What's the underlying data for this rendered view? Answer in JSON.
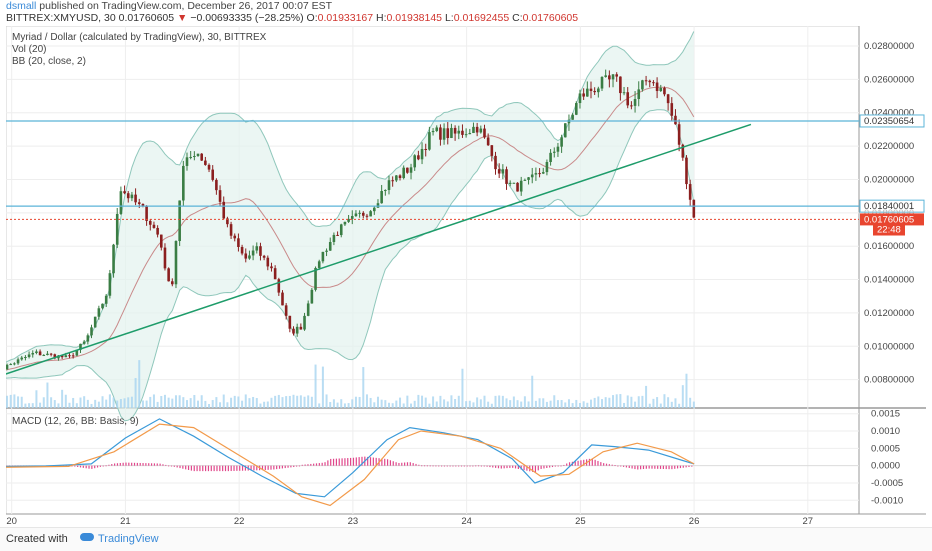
{
  "header": {
    "user": "dsmall",
    "published": " published on TradingView.com, December 26, 2017 00:07 EST",
    "symbol": "BITTREX:XMYUSD, 30",
    "last": "0.01760605",
    "arrow": "▼",
    "change": "−0.00693335 (−28.25%)",
    "o_label": "O:",
    "o": "0.01933167",
    "h_label": "H:",
    "h": "0.01938145",
    "l_label": "L:",
    "l": "0.01692455",
    "c_label": "C:",
    "c": "0.01760605"
  },
  "legend": {
    "title": "Myriad / Dollar (calculated by TradingView), 30, BITTREX",
    "vol": "Vol (20)",
    "bb": "BB (20, close, 2)",
    "macd": "MACD (12, 26, BB: Basis, 9)"
  },
  "footer": {
    "created": "Created with",
    "brand": "TradingView"
  },
  "colors": {
    "up": "#3a7d44",
    "down": "#8b1f1f",
    "band": "#8fc7bb",
    "bandfill": "#e3f2ee",
    "basis": "#c98a8a",
    "hline": "#5bb4d8",
    "trend": "#1e9c6a",
    "price": "#e8452f",
    "macd": "#3a9ad9",
    "signal": "#f29a4a",
    "hist": "#e0468a",
    "volume": "#a8d4f0"
  },
  "chart_data": {
    "type": "candlestick",
    "title": "Myriad / Dollar (calculated by TradingView), 30, BITTREX",
    "x_ticks": [
      "20",
      "21",
      "22",
      "23",
      "24",
      "25",
      "26",
      "27"
    ],
    "price_ticks": [
      "0.00800000",
      "0.01000000",
      "0.01200000",
      "0.01400000",
      "0.01600000",
      "0.01800000",
      "0.02000000",
      "0.02200000",
      "0.02400000",
      "0.02600000",
      "0.02800000"
    ],
    "ylim": [
      0.0063,
      0.0292
    ],
    "price_labels": [
      {
        "label": "0.02350654",
        "value": 0.02350654,
        "style": "hline"
      },
      {
        "label": "0.01840001",
        "value": 0.01840001,
        "style": "hline"
      },
      {
        "label": "0.01800000",
        "value": 0.018,
        "style": "faded"
      },
      {
        "label": "0.01760605",
        "value": 0.01760605,
        "style": "price"
      },
      {
        "label": "22:48",
        "value": 0.017,
        "style": "timer"
      }
    ],
    "trendline": [
      [
        19.8,
        0.008
      ],
      [
        26.5,
        0.0233
      ]
    ],
    "candles_x_range": [
      19.83,
      26.0
    ],
    "price_path": [
      [
        19.83,
        0.0084
      ],
      [
        20.2,
        0.0096
      ],
      [
        20.5,
        0.0093
      ],
      [
        20.65,
        0.0103
      ],
      [
        20.85,
        0.0134
      ],
      [
        20.95,
        0.0195
      ],
      [
        21.15,
        0.0182
      ],
      [
        21.3,
        0.0165
      ],
      [
        21.4,
        0.013
      ],
      [
        21.5,
        0.0206
      ],
      [
        21.62,
        0.0218
      ],
      [
        21.75,
        0.0205
      ],
      [
        21.9,
        0.017
      ],
      [
        22.05,
        0.0152
      ],
      [
        22.15,
        0.0158
      ],
      [
        22.3,
        0.0145
      ],
      [
        22.45,
        0.0108
      ],
      [
        22.55,
        0.0112
      ],
      [
        22.7,
        0.0152
      ],
      [
        22.85,
        0.0168
      ],
      [
        23.0,
        0.0176
      ],
      [
        23.15,
        0.0182
      ],
      [
        23.3,
        0.0197
      ],
      [
        23.5,
        0.0207
      ],
      [
        23.7,
        0.0228
      ],
      [
        23.9,
        0.0227
      ],
      [
        24.1,
        0.0232
      ],
      [
        24.25,
        0.021
      ],
      [
        24.4,
        0.0195
      ],
      [
        24.55,
        0.0198
      ],
      [
        24.7,
        0.0208
      ],
      [
        24.85,
        0.0228
      ],
      [
        25.0,
        0.025
      ],
      [
        25.15,
        0.0256
      ],
      [
        25.3,
        0.026
      ],
      [
        25.45,
        0.0244
      ],
      [
        25.6,
        0.0262
      ],
      [
        25.75,
        0.025
      ],
      [
        25.85,
        0.0228
      ],
      [
        25.95,
        0.0195
      ],
      [
        26.0,
        0.01760605
      ]
    ],
    "macd_ticks": [
      "-0.0010",
      "-0.0005",
      "0.0000",
      "0.0005",
      "0.0010",
      "0.0015"
    ],
    "macd_ylim": [
      -0.00128,
      0.00155
    ],
    "macd_line": [
      [
        19.83,
        -3e-05
      ],
      [
        20.3,
        -1e-05
      ],
      [
        20.7,
        5e-05
      ],
      [
        21.0,
        0.0008
      ],
      [
        21.3,
        0.00135
      ],
      [
        21.6,
        0.00085
      ],
      [
        21.9,
        0.00025
      ],
      [
        22.2,
        -0.0003
      ],
      [
        22.5,
        -0.0008
      ],
      [
        22.75,
        -0.0009
      ],
      [
        23.0,
        -0.0002
      ],
      [
        23.3,
        0.00075
      ],
      [
        23.5,
        0.0011
      ],
      [
        23.8,
        0.00095
      ],
      [
        24.1,
        0.00075
      ],
      [
        24.4,
        0.0002
      ],
      [
        24.6,
        -0.0005
      ],
      [
        24.85,
        -0.0002
      ],
      [
        25.1,
        0.0006
      ],
      [
        25.3,
        0.00055
      ],
      [
        25.6,
        0.00045
      ],
      [
        25.9,
        0.00015
      ],
      [
        26.0,
        5e-05
      ]
    ],
    "signal_line": [
      [
        19.83,
        -5e-05
      ],
      [
        20.5,
        -2e-05
      ],
      [
        20.9,
        0.0004
      ],
      [
        21.3,
        0.0012
      ],
      [
        21.6,
        0.0011
      ],
      [
        21.9,
        0.0005
      ],
      [
        22.3,
        -0.0003
      ],
      [
        22.55,
        -0.0009
      ],
      [
        22.8,
        -0.00115
      ],
      [
        23.1,
        -0.0004
      ],
      [
        23.4,
        0.00075
      ],
      [
        23.6,
        0.001
      ],
      [
        23.95,
        0.00085
      ],
      [
        24.3,
        0.0005
      ],
      [
        24.65,
        -0.0003
      ],
      [
        24.9,
        -0.00025
      ],
      [
        25.2,
        0.0004
      ],
      [
        25.5,
        0.00065
      ],
      [
        25.8,
        0.0004
      ],
      [
        26.0,
        5e-05
      ]
    ]
  }
}
